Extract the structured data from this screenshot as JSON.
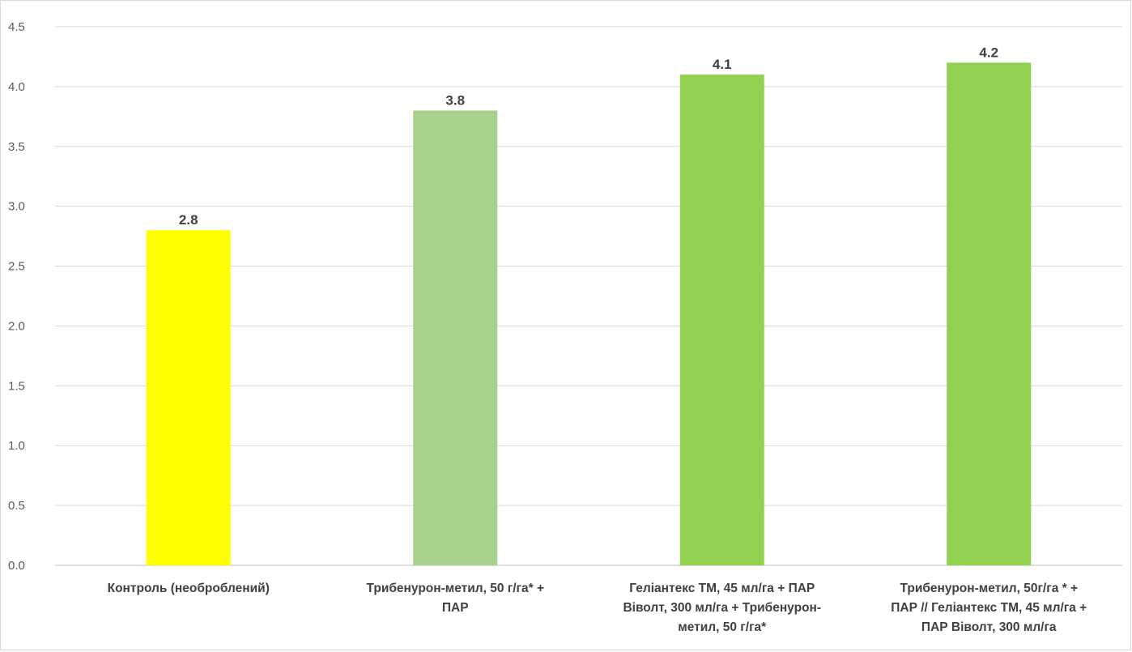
{
  "chart_data": {
    "type": "bar",
    "categories": [
      [
        "Контроль (необроблений)"
      ],
      [
        "Трибенурон-метил, 50 г/га* +",
        "ПАР"
      ],
      [
        "Геліантекс ТМ, 45 мл/га + ПАР",
        "Віволт, 300 мл/га + Трибенурон-",
        "метил, 50 г/га*"
      ],
      [
        "Трибенурон-метил, 50г/га * +",
        "ПАР // Геліантекс ТМ, 45 мл/га +",
        "ПАР Віволт, 300 мл/га"
      ]
    ],
    "values": [
      2.8,
      3.8,
      4.1,
      4.2
    ],
    "value_labels": [
      "2.8",
      "3.8",
      "4.1",
      "4.2"
    ],
    "bar_colors": [
      "#ffff00",
      "#a9d18e",
      "#92d050",
      "#92d050"
    ],
    "title": "",
    "xlabel": "",
    "ylabel": "",
    "ylim": [
      0,
      4.5
    ],
    "yticks": [
      "0.0",
      "0.5",
      "1.0",
      "1.5",
      "2.0",
      "2.5",
      "3.0",
      "3.5",
      "4.0",
      "4.5"
    ],
    "grid": true,
    "legend": "none"
  }
}
